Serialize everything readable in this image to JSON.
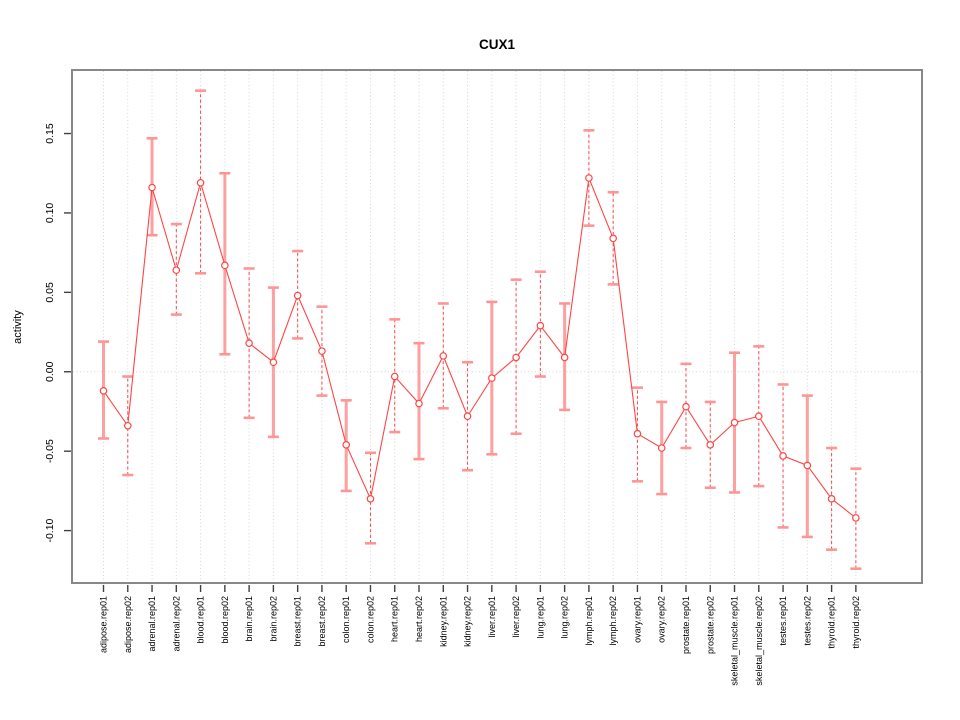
{
  "chart_data": {
    "type": "line",
    "title": "CUX1",
    "xlabel": "",
    "ylabel": "activity",
    "ylim": [
      -0.133,
      0.19
    ],
    "yticks": [
      -0.1,
      -0.05,
      0.0,
      0.05,
      0.1,
      0.15
    ],
    "ytick_labels": [
      "-0.10",
      "-0.05",
      "0.00",
      "0.05",
      "0.10",
      "0.15"
    ],
    "grid": "dotted vertical gridline at every category; dotted horizontal line at y=0 only",
    "legend": "none",
    "marker": "open-circle",
    "categories": [
      "adipose.rep01",
      "adipose.rep02",
      "adrenal.rep01",
      "adrenal.rep02",
      "blood.rep01",
      "blood.rep02",
      "brain.rep01",
      "brain.rep02",
      "breast.rep01",
      "breast.rep02",
      "colon.rep01",
      "colon.rep02",
      "heart.rep01",
      "heart.rep02",
      "kidney.rep01",
      "kidney.rep02",
      "liver.rep01",
      "liver.rep02",
      "lung.rep01",
      "lung.rep02",
      "lymph.rep01",
      "lymph.rep02",
      "ovary.rep01",
      "ovary.rep02",
      "prostate.rep01",
      "prostate.rep02",
      "skeletal_muscle.rep01",
      "skeletal_muscle.rep02",
      "testes.rep01",
      "testes.rep02",
      "thyroid.rep01",
      "thyroid.rep02"
    ],
    "series": [
      {
        "name": "activity",
        "values": [
          -0.012,
          -0.034,
          0.116,
          0.064,
          0.119,
          0.067,
          0.018,
          0.006,
          0.048,
          0.013,
          -0.046,
          -0.08,
          -0.003,
          -0.02,
          0.01,
          -0.028,
          -0.004,
          0.009,
          0.029,
          0.009,
          0.122,
          0.084,
          -0.039,
          -0.048,
          -0.022,
          -0.046,
          -0.032,
          -0.028,
          -0.053,
          -0.059,
          -0.08,
          -0.092
        ],
        "error_low": [
          -0.042,
          -0.065,
          0.086,
          0.036,
          0.062,
          0.011,
          -0.029,
          -0.041,
          0.021,
          -0.015,
          -0.075,
          -0.108,
          -0.038,
          -0.055,
          -0.023,
          -0.062,
          -0.052,
          -0.039,
          -0.003,
          -0.024,
          0.092,
          0.055,
          -0.069,
          -0.077,
          -0.048,
          -0.073,
          -0.076,
          -0.072,
          -0.098,
          -0.104,
          -0.112,
          -0.124
        ],
        "error_high": [
          0.019,
          -0.003,
          0.147,
          0.093,
          0.177,
          0.125,
          0.065,
          0.053,
          0.076,
          0.041,
          -0.018,
          -0.051,
          0.033,
          0.018,
          0.043,
          0.006,
          0.044,
          0.058,
          0.063,
          0.043,
          0.152,
          0.113,
          -0.01,
          -0.019,
          0.005,
          -0.019,
          0.012,
          0.016,
          -0.008,
          -0.015,
          -0.048,
          -0.061
        ],
        "bar_style": [
          "solid",
          "dashed",
          "solid",
          "dashed",
          "dashed",
          "solid",
          "dashed",
          "solid",
          "dashed",
          "dashed",
          "solid",
          "dashed",
          "dashed",
          "solid",
          "dashed",
          "dashed",
          "solid",
          "dashed",
          "dashed",
          "solid",
          "dashed",
          "dashed",
          "dashed",
          "solid",
          "dashed",
          "dashed",
          "solid",
          "dashed",
          "dashed",
          "solid",
          "dashed",
          "dashed"
        ]
      }
    ],
    "colors": {
      "line": "#ff4545",
      "error_bar_solid": "#ffa0a0",
      "error_bar_cap": "#ff9494",
      "frame": "#888888",
      "grid": "#d6d6d6",
      "text": "#000000"
    }
  }
}
